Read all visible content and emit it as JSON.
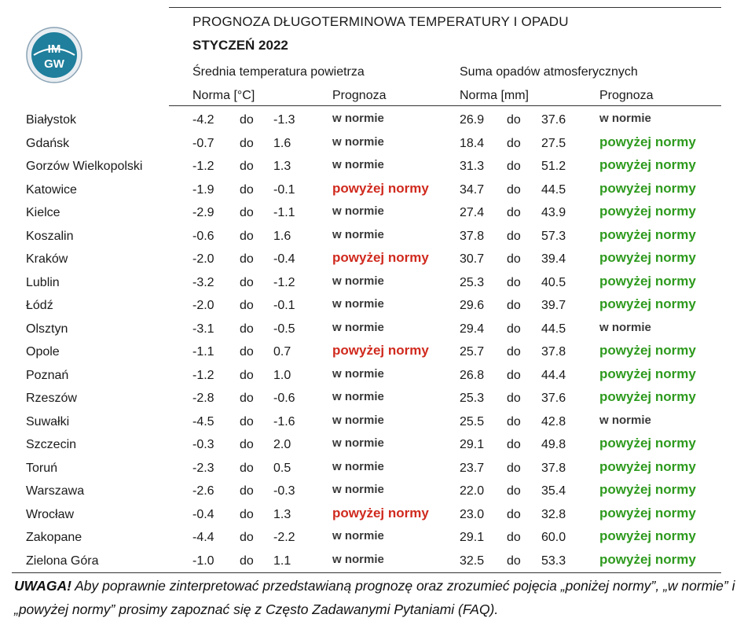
{
  "logo": {
    "text_top": "IM",
    "text_bottom": "GW"
  },
  "title": "PROGNOZA DŁUGOTERMINOWA TEMPERATURY I OPADU",
  "subtitle": "STYCZEŃ 2022",
  "temperature_group": "Średnia temperatura powietrza",
  "precip_group": "Suma opadów atmosferycznych",
  "headers": {
    "temp_norm": "Norma [°C]",
    "temp_forecast": "Prognoza",
    "precip_norm": "Norma [mm]",
    "precip_forecast": "Prognoza"
  },
  "range_word": "do",
  "colors": {
    "above_temp": "#d02a1e",
    "above_precip": "#2e9a1e",
    "normal": "#3a3a3a"
  },
  "rows": [
    {
      "city": "Białystok",
      "t_min": "-4.2",
      "t_max": "-1.3",
      "t_fc": "w normie",
      "t_fc_type": "normal",
      "p_min": "26.9",
      "p_max": "37.6",
      "p_fc": "w normie",
      "p_fc_type": "normal"
    },
    {
      "city": "Gdańsk",
      "t_min": "-0.7",
      "t_max": "1.6",
      "t_fc": "w normie",
      "t_fc_type": "normal",
      "p_min": "18.4",
      "p_max": "27.5",
      "p_fc": "powyżej normy",
      "p_fc_type": "above"
    },
    {
      "city": "Gorzów Wielkopolski",
      "t_min": "-1.2",
      "t_max": "1.3",
      "t_fc": "w normie",
      "t_fc_type": "normal",
      "p_min": "31.3",
      "p_max": "51.2",
      "p_fc": "powyżej normy",
      "p_fc_type": "above"
    },
    {
      "city": "Katowice",
      "t_min": "-1.9",
      "t_max": "-0.1",
      "t_fc": "powyżej normy",
      "t_fc_type": "above",
      "p_min": "34.7",
      "p_max": "44.5",
      "p_fc": "powyżej normy",
      "p_fc_type": "above"
    },
    {
      "city": "Kielce",
      "t_min": "-2.9",
      "t_max": "-1.1",
      "t_fc": "w normie",
      "t_fc_type": "normal",
      "p_min": "27.4",
      "p_max": "43.9",
      "p_fc": "powyżej normy",
      "p_fc_type": "above"
    },
    {
      "city": "Koszalin",
      "t_min": "-0.6",
      "t_max": "1.6",
      "t_fc": "w normie",
      "t_fc_type": "normal",
      "p_min": "37.8",
      "p_max": "57.3",
      "p_fc": "powyżej normy",
      "p_fc_type": "above"
    },
    {
      "city": "Kraków",
      "t_min": "-2.0",
      "t_max": "-0.4",
      "t_fc": "powyżej normy",
      "t_fc_type": "above",
      "p_min": "30.7",
      "p_max": "39.4",
      "p_fc": "powyżej normy",
      "p_fc_type": "above"
    },
    {
      "city": "Lublin",
      "t_min": "-3.2",
      "t_max": "-1.2",
      "t_fc": "w normie",
      "t_fc_type": "normal",
      "p_min": "25.3",
      "p_max": "40.5",
      "p_fc": "powyżej normy",
      "p_fc_type": "above"
    },
    {
      "city": "Łódź",
      "t_min": "-2.0",
      "t_max": "-0.1",
      "t_fc": "w normie",
      "t_fc_type": "normal",
      "p_min": "29.6",
      "p_max": "39.7",
      "p_fc": "powyżej normy",
      "p_fc_type": "above"
    },
    {
      "city": "Olsztyn",
      "t_min": "-3.1",
      "t_max": "-0.5",
      "t_fc": "w normie",
      "t_fc_type": "normal",
      "p_min": "29.4",
      "p_max": "44.5",
      "p_fc": "w normie",
      "p_fc_type": "normal"
    },
    {
      "city": "Opole",
      "t_min": "-1.1",
      "t_max": "0.7",
      "t_fc": "powyżej normy",
      "t_fc_type": "above",
      "p_min": "25.7",
      "p_max": "37.8",
      "p_fc": "powyżej normy",
      "p_fc_type": "above"
    },
    {
      "city": "Poznań",
      "t_min": "-1.2",
      "t_max": "1.0",
      "t_fc": "w normie",
      "t_fc_type": "normal",
      "p_min": "26.8",
      "p_max": "44.4",
      "p_fc": "powyżej normy",
      "p_fc_type": "above"
    },
    {
      "city": "Rzeszów",
      "t_min": "-2.8",
      "t_max": "-0.6",
      "t_fc": "w normie",
      "t_fc_type": "normal",
      "p_min": "25.3",
      "p_max": "37.6",
      "p_fc": "powyżej normy",
      "p_fc_type": "above"
    },
    {
      "city": "Suwałki",
      "t_min": "-4.5",
      "t_max": "-1.6",
      "t_fc": "w normie",
      "t_fc_type": "normal",
      "p_min": "25.5",
      "p_max": "42.8",
      "p_fc": "w normie",
      "p_fc_type": "normal"
    },
    {
      "city": "Szczecin",
      "t_min": "-0.3",
      "t_max": "2.0",
      "t_fc": "w normie",
      "t_fc_type": "normal",
      "p_min": "29.1",
      "p_max": "49.8",
      "p_fc": "powyżej normy",
      "p_fc_type": "above"
    },
    {
      "city": "Toruń",
      "t_min": "-2.3",
      "t_max": "0.5",
      "t_fc": "w normie",
      "t_fc_type": "normal",
      "p_min": "23.7",
      "p_max": "37.8",
      "p_fc": "powyżej normy",
      "p_fc_type": "above"
    },
    {
      "city": "Warszawa",
      "t_min": "-2.6",
      "t_max": "-0.3",
      "t_fc": "w normie",
      "t_fc_type": "normal",
      "p_min": "22.0",
      "p_max": "35.4",
      "p_fc": "powyżej normy",
      "p_fc_type": "above"
    },
    {
      "city": "Wrocław",
      "t_min": "-0.4",
      "t_max": "1.3",
      "t_fc": "powyżej normy",
      "t_fc_type": "above",
      "p_min": "23.0",
      "p_max": "32.8",
      "p_fc": "powyżej normy",
      "p_fc_type": "above"
    },
    {
      "city": "Zakopane",
      "t_min": "-4.4",
      "t_max": "-2.2",
      "t_fc": "w normie",
      "t_fc_type": "normal",
      "p_min": "29.1",
      "p_max": "60.0",
      "p_fc": "powyżej normy",
      "p_fc_type": "above"
    },
    {
      "city": "Zielona Góra",
      "t_min": "-1.0",
      "t_max": "1.1",
      "t_fc": "w normie",
      "t_fc_type": "normal",
      "p_min": "32.5",
      "p_max": "53.3",
      "p_fc": "powyżej normy",
      "p_fc_type": "above"
    }
  ],
  "note": {
    "lead": "UWAGA!",
    "text": " Aby poprawnie zinterpretować przedstawianą prognozę oraz zrozumieć pojęcia „poniżej normy”, „w normie” i „powyżej normy” prosimy zapoznać się z Często Zadawanymi Pytaniami (FAQ)."
  }
}
